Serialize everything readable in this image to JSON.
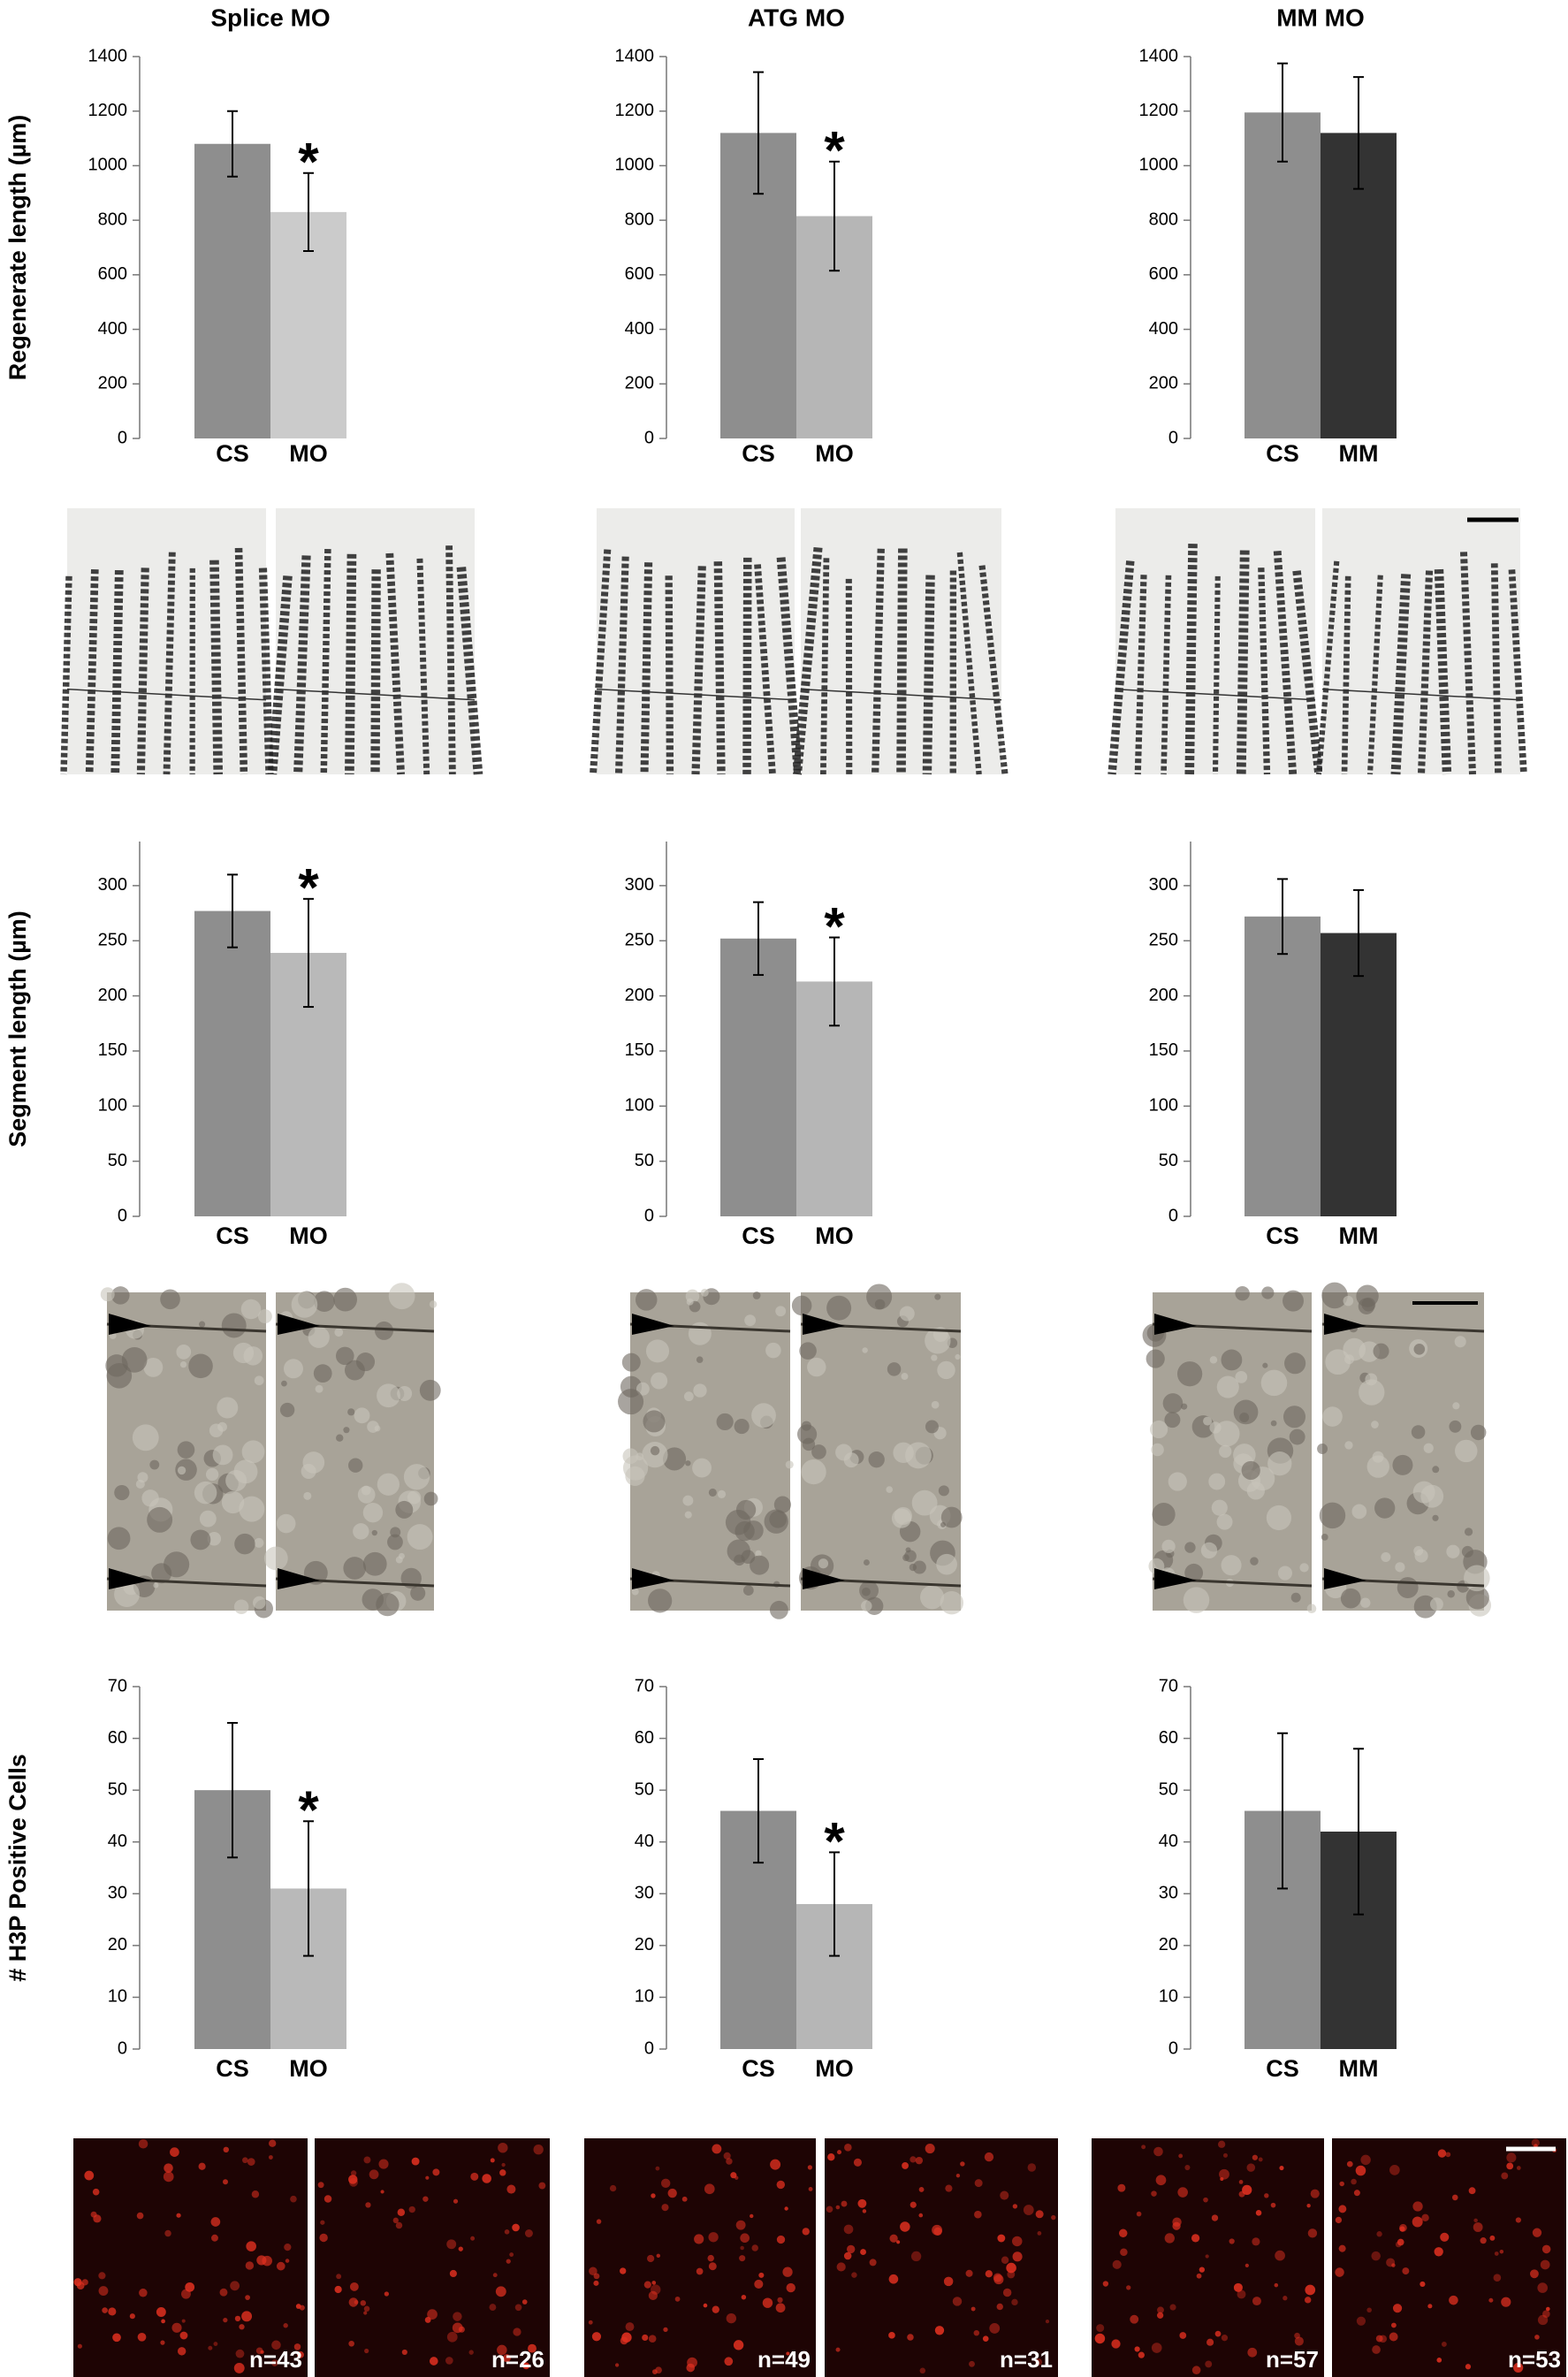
{
  "chart_data": [
    {
      "type": "bar",
      "title": "Splice MO",
      "ylabel": "Regenerate length (µm)",
      "categories": [
        "CS",
        "MO"
      ],
      "values": [
        1080,
        830
      ],
      "errors": [
        120,
        143
      ],
      "colors": [
        "#8e8e8e",
        "#cbcbcb"
      ],
      "annotations": [
        null,
        "*"
      ],
      "ylim": [
        0,
        1400
      ],
      "yticks": [
        0,
        200,
        400,
        600,
        800,
        1000,
        1200,
        1400
      ]
    },
    {
      "type": "bar",
      "title": "ATG MO",
      "categories": [
        "CS",
        "MO"
      ],
      "values": [
        1120,
        815
      ],
      "errors": [
        223,
        200
      ],
      "colors": [
        "#8e8e8e",
        "#b6b6b6"
      ],
      "annotations": [
        null,
        "*"
      ],
      "ylim": [
        0,
        1400
      ],
      "yticks": [
        0,
        200,
        400,
        600,
        800,
        1000,
        1200,
        1400
      ]
    },
    {
      "type": "bar",
      "title": "MM MO",
      "categories": [
        "CS",
        "MM"
      ],
      "values": [
        1195,
        1120
      ],
      "errors": [
        180,
        205
      ],
      "colors": [
        "#8e8e8e",
        "#333333"
      ],
      "ylim": [
        0,
        1400
      ],
      "yticks": [
        0,
        200,
        400,
        600,
        800,
        1000,
        1200,
        1400
      ]
    },
    {
      "type": "bar",
      "ylabel": "Segment length (µm)",
      "categories": [
        "CS",
        "MO"
      ],
      "values": [
        277,
        239
      ],
      "errors": [
        33,
        49
      ],
      "colors": [
        "#8e8e8e",
        "#b9b9b9"
      ],
      "annotations": [
        null,
        "*"
      ],
      "ylim": [
        0,
        340
      ],
      "yticks": [
        0,
        50,
        100,
        150,
        200,
        250,
        300
      ]
    },
    {
      "type": "bar",
      "categories": [
        "CS",
        "MO"
      ],
      "values": [
        252,
        213
      ],
      "errors": [
        33,
        40
      ],
      "colors": [
        "#8e8e8e",
        "#b6b6b6"
      ],
      "annotations": [
        null,
        "*"
      ],
      "ylim": [
        0,
        340
      ],
      "yticks": [
        0,
        50,
        100,
        150,
        200,
        250,
        300
      ]
    },
    {
      "type": "bar",
      "categories": [
        "CS",
        "MM"
      ],
      "values": [
        272,
        257
      ],
      "errors": [
        34,
        39
      ],
      "colors": [
        "#8e8e8e",
        "#333333"
      ],
      "ylim": [
        0,
        340
      ],
      "yticks": [
        0,
        50,
        100,
        150,
        200,
        250,
        300
      ]
    },
    {
      "type": "bar",
      "ylabel": "# H3P Positive Cells",
      "categories": [
        "CS",
        "MO"
      ],
      "values": [
        50,
        31
      ],
      "errors": [
        13,
        13
      ],
      "colors": [
        "#8e8e8e",
        "#b9b9b9"
      ],
      "annotations": [
        null,
        "*"
      ],
      "ylim": [
        0,
        70
      ],
      "yticks": [
        0,
        10,
        20,
        30,
        40,
        50,
        60,
        70
      ]
    },
    {
      "type": "bar",
      "categories": [
        "CS",
        "MO"
      ],
      "values": [
        46,
        28
      ],
      "errors": [
        10,
        10
      ],
      "colors": [
        "#8e8e8e",
        "#b6b6b6"
      ],
      "annotations": [
        null,
        "*"
      ],
      "ylim": [
        0,
        70
      ],
      "yticks": [
        0,
        10,
        20,
        30,
        40,
        50,
        60,
        70
      ]
    },
    {
      "type": "bar",
      "categories": [
        "CS",
        "MM"
      ],
      "values": [
        46,
        42
      ],
      "errors": [
        15,
        16
      ],
      "colors": [
        "#8e8e8e",
        "#333333"
      ],
      "ylim": [
        0,
        70
      ],
      "yticks": [
        0,
        10,
        20,
        30,
        40,
        50,
        60,
        70
      ]
    }
  ],
  "image_labels": [
    "n=43",
    "n=26",
    "n=49",
    "n=31",
    "n=57",
    "n=53"
  ]
}
